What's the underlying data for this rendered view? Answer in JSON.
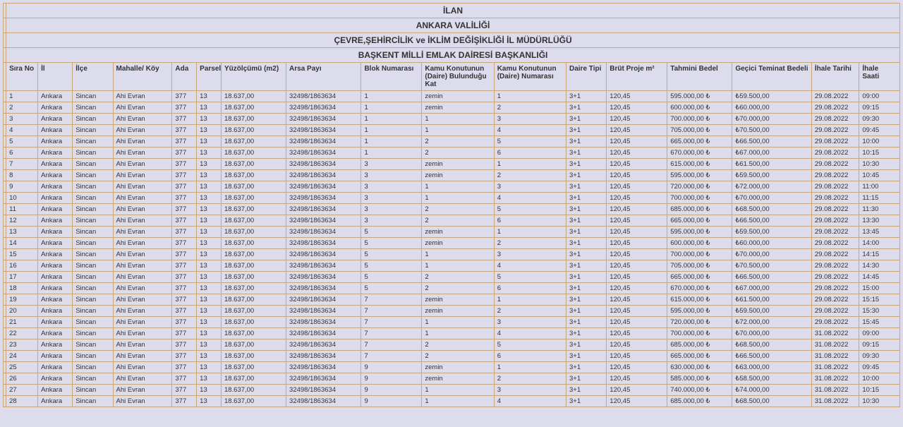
{
  "colors": {
    "background": "#dcdcec",
    "border": "#c9a678",
    "text": "#333333"
  },
  "titles": [
    "İLAN",
    "ANKARA VALİLİĞİ",
    "ÇEVRE,ŞEHİRCİLİK ve İKLİM DEĞİŞİKLİĞİ İL MÜDÜRLÜĞÜ",
    "BAŞKENT MİLLİ EMLAK DAİRESİ BAŞKANLIĞI"
  ],
  "columns": [
    "Sıra No",
    "İl",
    "İlçe",
    "Mahalle/ Köy",
    "Ada",
    "Parsel",
    "Yüzölçümü (m2)",
    "Arsa Payı",
    "Blok Numarası",
    "Kamu Konutunun (Daire) Bulunduğu Kat",
    "Kamu Konutunun (Daire) Numarası",
    "Daire Tipi",
    "Brüt Proje m²",
    "Tahmini Bedel",
    "Geçici Teminat Bedeli",
    "İhale Tarihi",
    "İhale Saati"
  ],
  "common": {
    "il": "Ankara",
    "ilce": "Sincan",
    "mahalle": "Ahi Evran",
    "ada": "377",
    "parsel": "13",
    "yuzolcumu": "18.637,00",
    "arsa_payi": "32498/1863634",
    "daire_tipi": "3+1",
    "brut": "120,45"
  },
  "rows": [
    {
      "n": "1",
      "blok": "1",
      "kat": "zemin",
      "num": "1",
      "tahmin": "595.000,00 ₺",
      "teminat": "₺59.500,00",
      "tarih": "29.08.2022",
      "saat": "09:00"
    },
    {
      "n": "2",
      "blok": "1",
      "kat": "zemin",
      "num": "2",
      "tahmin": "600.000,00 ₺",
      "teminat": "₺60.000,00",
      "tarih": "29.08.2022",
      "saat": "09:15"
    },
    {
      "n": "3",
      "blok": "1",
      "kat": "1",
      "num": "3",
      "tahmin": "700.000,00 ₺",
      "teminat": "₺70.000,00",
      "tarih": "29.08.2022",
      "saat": "09:30"
    },
    {
      "n": "4",
      "blok": "1",
      "kat": "1",
      "num": "4",
      "tahmin": "705.000,00 ₺",
      "teminat": "₺70.500,00",
      "tarih": "29.08.2022",
      "saat": "09:45"
    },
    {
      "n": "5",
      "blok": "1",
      "kat": "2",
      "num": "5",
      "tahmin": "665.000,00 ₺",
      "teminat": "₺66.500,00",
      "tarih": "29.08.2022",
      "saat": "10:00"
    },
    {
      "n": "6",
      "blok": "1",
      "kat": "2",
      "num": "6",
      "tahmin": "670.000,00 ₺",
      "teminat": "₺67.000,00",
      "tarih": "29.08.2022",
      "saat": "10:15"
    },
    {
      "n": "7",
      "blok": "3",
      "kat": "zemin",
      "num": "1",
      "tahmin": "615.000,00 ₺",
      "teminat": "₺61.500,00",
      "tarih": "29.08.2022",
      "saat": "10:30"
    },
    {
      "n": "8",
      "blok": "3",
      "kat": "zemin",
      "num": "2",
      "tahmin": "595.000,00 ₺",
      "teminat": "₺59.500,00",
      "tarih": "29.08.2022",
      "saat": "10:45"
    },
    {
      "n": "9",
      "blok": "3",
      "kat": "1",
      "num": "3",
      "tahmin": "720.000,00 ₺",
      "teminat": "₺72.000,00",
      "tarih": "29.08.2022",
      "saat": "11:00"
    },
    {
      "n": "10",
      "blok": "3",
      "kat": "1",
      "num": "4",
      "tahmin": "700.000,00 ₺",
      "teminat": "₺70.000,00",
      "tarih": "29.08.2022",
      "saat": "11:15"
    },
    {
      "n": "11",
      "blok": "3",
      "kat": "2",
      "num": "5",
      "tahmin": "685.000,00 ₺",
      "teminat": "₺68.500,00",
      "tarih": "29.08.2022",
      "saat": "11:30"
    },
    {
      "n": "12",
      "blok": "3",
      "kat": "2",
      "num": "6",
      "tahmin": "665.000,00 ₺",
      "teminat": "₺66.500,00",
      "tarih": "29.08.2022",
      "saat": "13:30"
    },
    {
      "n": "13",
      "blok": "5",
      "kat": "zemin",
      "num": "1",
      "tahmin": "595.000,00 ₺",
      "teminat": "₺59.500,00",
      "tarih": "29.08.2022",
      "saat": "13:45"
    },
    {
      "n": "14",
      "blok": "5",
      "kat": "zemin",
      "num": "2",
      "tahmin": "600.000,00 ₺",
      "teminat": "₺60.000,00",
      "tarih": "29.08.2022",
      "saat": "14:00"
    },
    {
      "n": "15",
      "blok": "5",
      "kat": "1",
      "num": "3",
      "tahmin": "700.000,00 ₺",
      "teminat": "₺70.000,00",
      "tarih": "29.08.2022",
      "saat": "14:15"
    },
    {
      "n": "16",
      "blok": "5",
      "kat": "1",
      "num": "4",
      "tahmin": "705.000,00 ₺",
      "teminat": "₺70.500,00",
      "tarih": "29.08.2022",
      "saat": "14:30"
    },
    {
      "n": "17",
      "blok": "5",
      "kat": "2",
      "num": "5",
      "tahmin": "665.000,00 ₺",
      "teminat": "₺66.500,00",
      "tarih": "29.08.2022",
      "saat": "14:45"
    },
    {
      "n": "18",
      "blok": "5",
      "kat": "2",
      "num": "6",
      "tahmin": "670.000,00 ₺",
      "teminat": "₺67.000,00",
      "tarih": "29.08.2022",
      "saat": "15:00"
    },
    {
      "n": "19",
      "blok": "7",
      "kat": "zemin",
      "num": "1",
      "tahmin": "615.000,00 ₺",
      "teminat": "₺61.500,00",
      "tarih": "29.08.2022",
      "saat": "15:15"
    },
    {
      "n": "20",
      "blok": "7",
      "kat": "zemin",
      "num": "2",
      "tahmin": "595.000,00 ₺",
      "teminat": "₺59.500,00",
      "tarih": "29.08.2022",
      "saat": "15:30"
    },
    {
      "n": "21",
      "blok": "7",
      "kat": "1",
      "num": "3",
      "tahmin": "720.000,00 ₺",
      "teminat": "₺72.000,00",
      "tarih": "29.08.2022",
      "saat": "15:45"
    },
    {
      "n": "22",
      "blok": "7",
      "kat": "1",
      "num": "4",
      "tahmin": "700.000,00 ₺",
      "teminat": "₺70.000,00",
      "tarih": "31.08.2022",
      "saat": "09:00"
    },
    {
      "n": "23",
      "blok": "7",
      "kat": "2",
      "num": "5",
      "tahmin": "685.000,00 ₺",
      "teminat": "₺68.500,00",
      "tarih": "31.08.2022",
      "saat": "09:15"
    },
    {
      "n": "24",
      "blok": "7",
      "kat": "2",
      "num": "6",
      "tahmin": "665.000,00 ₺",
      "teminat": "₺66.500,00",
      "tarih": "31.08.2022",
      "saat": "09:30"
    },
    {
      "n": "25",
      "blok": "9",
      "kat": "zemin",
      "num": "1",
      "tahmin": "630.000,00 ₺",
      "teminat": "₺63.000,00",
      "tarih": "31.08.2022",
      "saat": "09:45"
    },
    {
      "n": "26",
      "blok": "9",
      "kat": "zemin",
      "num": "2",
      "tahmin": "585.000,00 ₺",
      "teminat": "₺58.500,00",
      "tarih": "31.08.2022",
      "saat": "10:00"
    },
    {
      "n": "27",
      "blok": "9",
      "kat": "1",
      "num": "3",
      "tahmin": "740.000,00 ₺",
      "teminat": "₺74.000,00",
      "tarih": "31.08.2022",
      "saat": "10:15"
    },
    {
      "n": "28",
      "blok": "9",
      "kat": "1",
      "num": "4",
      "tahmin": "685.000,00 ₺",
      "teminat": "₺68.500,00",
      "tarih": "31.08.2022",
      "saat": "10:30"
    }
  ]
}
